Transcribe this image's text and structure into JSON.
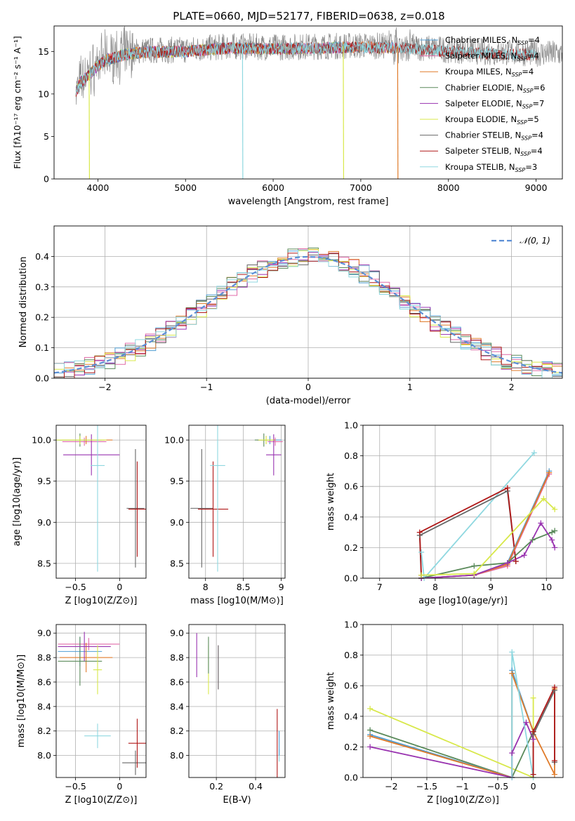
{
  "figure": {
    "title": "PLATE=0660, MJD=52177, FIBERID=0638, z=0.018"
  },
  "colors": {
    "Chabrier MILES": "#4f9ed4",
    "Salpeter MILES": "#e06aa8",
    "Kroupa MILES": "#e07b2a",
    "Chabrier ELODIE": "#5a8a5a",
    "Salpeter ELODIE": "#9933b0",
    "Kroupa ELODIE": "#d8e84a",
    "Chabrier STELIB": "#666666",
    "Salpeter STELIB": "#b01818",
    "Kroupa STELIB": "#8fd8e0",
    "gauss": "#5b8ed6",
    "grid": "#b0b0b0",
    "observed": "#8a8a8a"
  },
  "chart_data": [
    {
      "id": "spectrum",
      "type": "line",
      "title": "PLATE=0660, MJD=52177, FIBERID=0638, z=0.018",
      "xlabel": "wavelength [Angstrom, rest frame]",
      "ylabel": "Flux [fλ10⁻¹⁷ erg cm⁻² s⁻¹ A⁻¹]",
      "xlim": [
        3500,
        9300
      ],
      "ylim": [
        0,
        18
      ],
      "xticks": [
        4000,
        5000,
        6000,
        7000,
        8000,
        9000
      ],
      "yticks": [
        0,
        5,
        10,
        15
      ],
      "grid": false,
      "legend_position": "top-right",
      "legend": [
        "Chabrier MILES, N_SSP=4",
        "Salpeter MILES, N_SSP=4",
        "Kroupa MILES, N_SSP=4",
        "Chabrier ELODIE, N_SSP=6",
        "Salpeter ELODIE, N_SSP=7",
        "Kroupa ELODIE, N_SSP=5",
        "Chabrier STELIB, N_SSP=4",
        "Salpeter STELIB, N_SSP=4",
        "Kroupa STELIB, N_SSP=3"
      ],
      "continuum": [
        [
          3750,
          10.5
        ],
        [
          3800,
          11.5
        ],
        [
          3900,
          12.5
        ],
        [
          4000,
          13.5
        ],
        [
          4100,
          14.2
        ],
        [
          4300,
          14.8
        ],
        [
          4500,
          15.1
        ],
        [
          5000,
          15.2
        ],
        [
          5500,
          15.6
        ],
        [
          6000,
          15.5
        ],
        [
          6500,
          15.6
        ],
        [
          7000,
          15.7
        ],
        [
          7500,
          15.6
        ],
        [
          8000,
          15.2
        ],
        [
          8500,
          14.9
        ],
        [
          9000,
          14.8
        ],
        [
          9300,
          14.7
        ]
      ],
      "model_ranges": {
        "Kroupa ELODIE": [
          3750,
          6800
        ],
        "Salpeter ELODIE": [
          3750,
          6800
        ],
        "Chabrier ELODIE": [
          3750,
          6800
        ],
        "Kroupa MILES": [
          3750,
          7420
        ],
        "Salpeter MILES": [
          3750,
          7420
        ],
        "Chabrier MILES": [
          3750,
          7420
        ],
        "Chabrier STELIB": [
          3750,
          9000
        ],
        "Salpeter STELIB": [
          3750,
          9000
        ],
        "Kroupa STELIB": [
          3750,
          9000
        ]
      },
      "model_drops": [
        [
          3900,
          0
        ],
        [
          5650,
          0
        ],
        [
          6800,
          0
        ],
        [
          7420,
          0
        ]
      ]
    },
    {
      "id": "residuals",
      "type": "line",
      "xlabel": "(data-model)/error",
      "ylabel": "Normed distribution",
      "xlim": [
        -2.5,
        2.5
      ],
      "ylim": [
        0,
        0.5
      ],
      "xticks": [
        -2,
        -1,
        0,
        1,
        2
      ],
      "yticks": [
        0.0,
        0.1,
        0.2,
        0.3,
        0.4
      ],
      "grid": true,
      "legend_position": "top-right",
      "legend": [
        "𝒩(0, 1)"
      ],
      "gaussian": {
        "mu": 0,
        "sigma": 1
      }
    },
    {
      "id": "age-vs-Z",
      "type": "scatter",
      "xlabel": "Z [log10(Z/Z⊙)]",
      "ylabel": "age  [log10(age/yr)]",
      "xlim": [
        -0.72,
        0.3
      ],
      "ylim": [
        8.32,
        10.18
      ],
      "xticks": [
        -0.5,
        0.0
      ],
      "yticks": [
        8.5,
        9.0,
        9.5,
        10.0
      ],
      "grid": true,
      "points": [
        {
          "model": "Chabrier MILES",
          "x": -0.45,
          "xerr": 0.25,
          "y": 10.0,
          "yerr": 0.05
        },
        {
          "model": "Salpeter MILES",
          "x": -0.4,
          "xerr": 0.25,
          "y": 9.98,
          "yerr": 0.05
        },
        {
          "model": "Kroupa MILES",
          "x": -0.38,
          "xerr": 0.3,
          "y": 10.0,
          "yerr": 0.05
        },
        {
          "model": "Chabrier ELODIE",
          "x": -0.45,
          "xerr": 0.28,
          "y": 10.0,
          "yerr": 0.08
        },
        {
          "model": "Salpeter ELODIE",
          "x": -0.32,
          "xerr": 0.32,
          "y": 9.82,
          "yerr": 0.25
        },
        {
          "model": "Kroupa ELODIE",
          "x": -0.45,
          "xerr": 0.3,
          "y": 10.0,
          "yerr": 0.05
        },
        {
          "model": "Chabrier STELIB",
          "x": 0.18,
          "xerr": 0.1,
          "y": 9.17,
          "yerr": 0.72
        },
        {
          "model": "Salpeter STELIB",
          "x": 0.2,
          "xerr": 0.1,
          "y": 9.16,
          "yerr": 0.58
        },
        {
          "model": "Kroupa STELIB",
          "x": -0.25,
          "xerr": 0.08,
          "y": 9.69,
          "yerr": 1.29
        }
      ]
    },
    {
      "id": "age-vs-mass",
      "type": "scatter",
      "xlabel": "mass [log10(M/M⊙)]",
      "ylabel": "",
      "xlim": [
        7.78,
        9.05
      ],
      "ylim": [
        8.32,
        10.18
      ],
      "xticks": [
        8.0,
        8.5,
        9.0
      ],
      "yticks": [
        8.5,
        9.0,
        9.5,
        10.0
      ],
      "grid": true,
      "points": [
        {
          "model": "Chabrier MILES",
          "x": 8.85,
          "xerr": 0.15,
          "y": 10.0,
          "yerr": 0.05
        },
        {
          "model": "Salpeter MILES",
          "x": 8.92,
          "xerr": 0.1,
          "y": 9.98,
          "yerr": 0.05
        },
        {
          "model": "Kroupa MILES",
          "x": 8.8,
          "xerr": 0.12,
          "y": 10.0,
          "yerr": 0.05
        },
        {
          "model": "Chabrier ELODIE",
          "x": 8.77,
          "xerr": 0.12,
          "y": 10.0,
          "yerr": 0.08
        },
        {
          "model": "Salpeter ELODIE",
          "x": 8.9,
          "xerr": 0.1,
          "y": 9.82,
          "yerr": 0.25
        },
        {
          "model": "Kroupa ELODIE",
          "x": 8.8,
          "xerr": 0.1,
          "y": 10.0,
          "yerr": 0.05
        },
        {
          "model": "Chabrier STELIB",
          "x": 7.95,
          "xerr": 0.15,
          "y": 9.17,
          "yerr": 0.72
        },
        {
          "model": "Salpeter STELIB",
          "x": 8.1,
          "xerr": 0.2,
          "y": 9.16,
          "yerr": 0.58
        },
        {
          "model": "Kroupa STELIB",
          "x": 8.16,
          "xerr": 0.1,
          "y": 9.69,
          "yerr": 1.29
        }
      ]
    },
    {
      "id": "mass-weight-vs-age",
      "type": "line",
      "xlabel": "age  [log10(age/yr)]",
      "ylabel": "mass weight",
      "xlim": [
        6.7,
        10.3
      ],
      "ylim": [
        0,
        1.0
      ],
      "xticks": [
        7,
        8,
        9,
        10
      ],
      "yticks": [
        0.0,
        0.2,
        0.4,
        0.6,
        0.8,
        1.0
      ],
      "grid": true,
      "series": [
        {
          "model": "Kroupa STELIB",
          "x": [
            7.75,
            7.8,
            9.78
          ],
          "y": [
            0.17,
            0.0,
            0.82
          ]
        },
        {
          "model": "Chabrier STELIB",
          "x": [
            7.75,
            7.72,
            9.3,
            9.45
          ],
          "y": [
            0.0,
            0.28,
            0.57,
            0.11
          ]
        },
        {
          "model": "Salpeter STELIB",
          "x": [
            7.75,
            7.72,
            9.3,
            9.45
          ],
          "y": [
            0.02,
            0.3,
            0.59,
            0.11
          ]
        },
        {
          "model": "Chabrier MILES",
          "x": [
            7.75,
            8.7,
            9.3,
            10.05
          ],
          "y": [
            0.0,
            0.02,
            0.1,
            0.7
          ]
        },
        {
          "model": "Salpeter MILES",
          "x": [
            7.75,
            8.7,
            9.3,
            10.05
          ],
          "y": [
            0.0,
            0.02,
            0.08,
            0.68
          ]
        },
        {
          "model": "Kroupa MILES",
          "x": [
            7.75,
            8.7,
            9.3,
            10.05
          ],
          "y": [
            0.0,
            0.02,
            0.09,
            0.69
          ]
        },
        {
          "model": "Chabrier ELODIE",
          "x": [
            7.75,
            8.7,
            9.3,
            9.75,
            10.1,
            10.15
          ],
          "y": [
            0.0,
            0.08,
            0.1,
            0.25,
            0.3,
            0.31
          ]
        },
        {
          "model": "Salpeter ELODIE",
          "x": [
            7.75,
            8.7,
            9.3,
            9.6,
            9.9,
            10.1,
            10.15
          ],
          "y": [
            0.0,
            0.02,
            0.1,
            0.15,
            0.36,
            0.25,
            0.2
          ]
        },
        {
          "model": "Kroupa ELODIE",
          "x": [
            7.75,
            8.7,
            9.95,
            10.15
          ],
          "y": [
            0.02,
            0.03,
            0.52,
            0.45
          ]
        }
      ]
    },
    {
      "id": "mass-vs-Z",
      "type": "scatter",
      "xlabel": "Z [log10(Z/Z⊙)]",
      "ylabel": "mass [log10(M/M⊙)]",
      "xlim": [
        -0.72,
        0.3
      ],
      "ylim": [
        7.82,
        9.07
      ],
      "xticks": [
        -0.5,
        0.0
      ],
      "yticks": [
        8.0,
        8.2,
        8.4,
        8.6,
        8.8,
        9.0
      ],
      "grid": true,
      "points": [
        {
          "model": "Chabrier MILES",
          "x": -0.45,
          "xerr": 0.25,
          "y": 8.85,
          "yerr": 0.12
        },
        {
          "model": "Salpeter MILES",
          "x": -0.35,
          "xerr": 0.35,
          "y": 8.91,
          "yerr": 0.05
        },
        {
          "model": "Kroupa MILES",
          "x": -0.38,
          "xerr": 0.3,
          "y": 8.8,
          "yerr": 0.12
        },
        {
          "model": "Chabrier ELODIE",
          "x": -0.45,
          "xerr": 0.25,
          "y": 8.77,
          "yerr": 0.2
        },
        {
          "model": "Salpeter ELODIE",
          "x": -0.4,
          "xerr": 0.3,
          "y": 8.89,
          "yerr": 0.12
        },
        {
          "model": "Kroupa ELODIE",
          "x": -0.25,
          "xerr": 0.05,
          "y": 8.7,
          "yerr": 0.2
        },
        {
          "model": "Chabrier STELIB",
          "x": 0.18,
          "xerr": 0.15,
          "y": 7.94,
          "yerr": 0.1
        },
        {
          "model": "Salpeter STELIB",
          "x": 0.2,
          "xerr": 0.1,
          "y": 8.1,
          "yerr": 0.2
        },
        {
          "model": "Kroupa STELIB",
          "x": -0.25,
          "xerr": 0.15,
          "y": 8.16,
          "yerr": 0.1
        }
      ]
    },
    {
      "id": "mass-vs-EBV",
      "type": "scatter",
      "xlabel": "E(B-V)",
      "ylabel": "",
      "xlim": [
        0.06,
        0.55
      ],
      "ylim": [
        7.82,
        9.07
      ],
      "xticks": [
        0.2,
        0.4
      ],
      "yticks": [
        8.0,
        8.2,
        8.4,
        8.6,
        8.8,
        9.0
      ],
      "grid": true,
      "points": [
        {
          "model": "Salpeter ELODIE",
          "x": 0.1,
          "xerr": 0,
          "y": 8.82,
          "yerr": 0.18
        },
        {
          "model": "Kroupa ELODIE",
          "x": 0.16,
          "xerr": 0,
          "y": 8.7,
          "yerr": 0.2
        },
        {
          "model": "Chabrier ELODIE",
          "x": 0.16,
          "xerr": 0,
          "y": 8.82,
          "yerr": 0.15
        },
        {
          "model": "Salpeter MILES",
          "x": 0.21,
          "xerr": 0,
          "y": 8.72,
          "yerr": 0.18
        },
        {
          "model": "Chabrier STELIB",
          "x": 0.21,
          "xerr": 0,
          "y": 8.72,
          "yerr": 0.18
        },
        {
          "model": "Salpeter STELIB",
          "x": 0.51,
          "xerr": 0,
          "y": 8.1,
          "yerr": 0.28
        },
        {
          "model": "Kroupa STELIB",
          "x": 0.52,
          "xerr": 0,
          "y": 8.0,
          "yerr": 0.05
        },
        {
          "model": "Chabrier MILES",
          "x": 0.52,
          "xerr": 0,
          "y": 8.1,
          "yerr": 0.1
        }
      ]
    },
    {
      "id": "mass-weight-vs-Z",
      "type": "line",
      "xlabel": "Z [log10(Z/Z⊙)]",
      "ylabel": "mass weight",
      "xlim": [
        -2.4,
        0.42
      ],
      "ylim": [
        0,
        1.0
      ],
      "xticks": [
        -2.0,
        -1.5,
        -1.0,
        -0.5,
        0.0
      ],
      "yticks": [
        0.0,
        0.2,
        0.4,
        0.6,
        0.8,
        1.0
      ],
      "grid": true,
      "series": [
        {
          "model": "Kroupa ELODIE",
          "x": [
            -2.3,
            0.0,
            0.0
          ],
          "y": [
            0.45,
            0.0,
            0.52
          ]
        },
        {
          "model": "Chabrier ELODIE",
          "x": [
            -2.3,
            -0.3,
            0.0
          ],
          "y": [
            0.31,
            0.0,
            0.3
          ]
        },
        {
          "model": "Chabrier MILES",
          "x": [
            -2.3,
            -0.3,
            -0.3,
            0.0
          ],
          "y": [
            0.28,
            0.0,
            0.7,
            0.3
          ]
        },
        {
          "model": "Kroupa MILES",
          "x": [
            -2.3,
            -0.3,
            -0.3,
            0.0,
            0.3,
            0.3
          ],
          "y": [
            0.27,
            0.0,
            0.68,
            0.3,
            0.02,
            0.58
          ]
        },
        {
          "model": "Salpeter ELODIE",
          "x": [
            -2.3,
            -0.3,
            -0.3,
            -0.1,
            0.0
          ],
          "y": [
            0.2,
            0.0,
            0.16,
            0.36,
            0.25
          ]
        },
        {
          "model": "Kroupa STELIB",
          "x": [
            -0.3,
            -0.3,
            0.0
          ],
          "y": [
            0.0,
            0.82,
            0.0
          ]
        },
        {
          "model": "Chabrier STELIB",
          "x": [
            0.0,
            0.0,
            0.3,
            0.3
          ],
          "y": [
            0.02,
            0.28,
            0.57,
            0.1
          ]
        },
        {
          "model": "Salpeter STELIB",
          "x": [
            0.0,
            0.0,
            0.3,
            0.3
          ],
          "y": [
            0.02,
            0.3,
            0.59,
            0.11
          ]
        }
      ]
    }
  ]
}
